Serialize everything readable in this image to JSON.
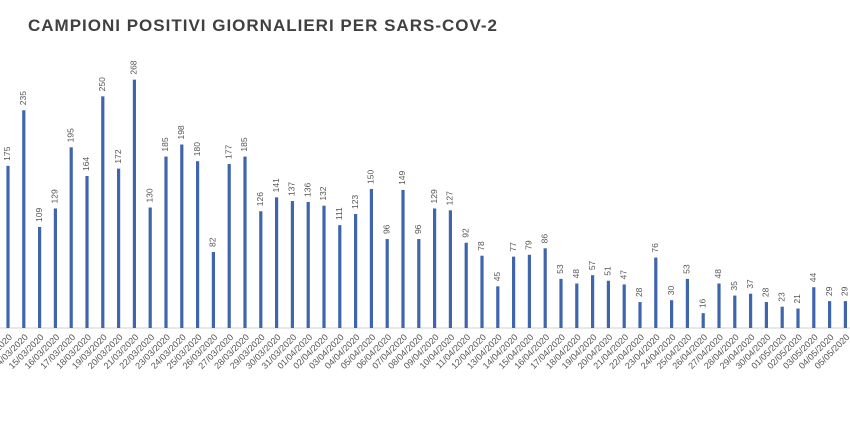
{
  "chart_data": {
    "type": "bar",
    "title": "CAMPIONI POSITIVI GIORNALIERI PER SARS-COV-2",
    "categories": [
      "13/03/2020",
      "14/03/2020",
      "15/03/2020",
      "16/03/2020",
      "17/03/2020",
      "18/03/2020",
      "19/03/2020",
      "20/03/2020",
      "21/03/2020",
      "22/03/2020",
      "23/03/2020",
      "24/03/2020",
      "25/03/2020",
      "26/03/2020",
      "27/03/2020",
      "28/03/2020",
      "29/03/2020",
      "30/03/2020",
      "31/03/2020",
      "01/04/2020",
      "02/04/2020",
      "03/04/2020",
      "04/04/2020",
      "05/04/2020",
      "06/04/2020",
      "07/04/2020",
      "08/04/2020",
      "09/04/2020",
      "10/04/2020",
      "11/04/2020",
      "12/04/2020",
      "13/04/2020",
      "14/04/2020",
      "15/04/2020",
      "16/04/2020",
      "17/04/2020",
      "18/04/2020",
      "19/04/2020",
      "20/04/2020",
      "21/04/2020",
      "22/04/2020",
      "23/04/2020",
      "24/04/2020",
      "25/04/2020",
      "26/04/2020",
      "27/04/2020",
      "28/04/2020",
      "29/04/2020",
      "30/04/2020",
      "01/05/2020",
      "02/05/2020",
      "03/05/2020",
      "04/05/2020",
      "05/05/2020"
    ],
    "values": [
      175,
      235,
      109,
      129,
      195,
      164,
      250,
      172,
      268,
      130,
      185,
      198,
      180,
      82,
      177,
      185,
      126,
      141,
      137,
      136,
      132,
      111,
      123,
      150,
      96,
      149,
      96,
      129,
      127,
      92,
      78,
      45,
      77,
      79,
      86,
      53,
      48,
      57,
      51,
      47,
      28,
      76,
      30,
      53,
      16,
      48,
      35,
      37,
      28,
      23,
      21,
      44,
      29,
      29
    ],
    "color": "#3f66ad",
    "ylim": [
      0,
      300
    ]
  }
}
